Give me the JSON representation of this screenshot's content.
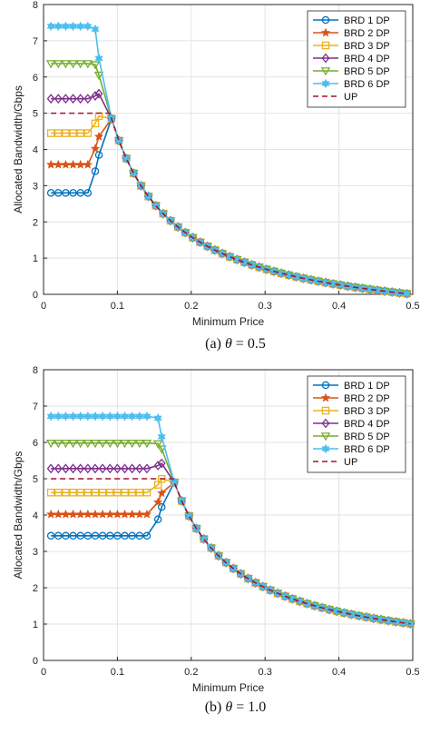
{
  "chart_data": [
    {
      "type": "line",
      "caption_prefix": "(a)",
      "caption_theta": "θ",
      "caption_value": " = 0.5",
      "xlabel": "Minimum Price",
      "ylabel": "Allocated Bandwidth/Gbps",
      "xlim": [
        0,
        0.5
      ],
      "ylim": [
        0,
        8
      ],
      "xticks": [
        "0",
        "0.1",
        "0.2",
        "0.3",
        "0.4",
        "0.5"
      ],
      "yticks": [
        "0",
        "1",
        "2",
        "3",
        "4",
        "5",
        "6",
        "7",
        "8"
      ],
      "grid": true,
      "legend_position": "top-right",
      "knee": 0.08,
      "tail_k": 0.4,
      "series": [
        {
          "name": "BRD 1 DP",
          "flat": 2.8,
          "color": "#0072BD",
          "marker": "circle"
        },
        {
          "name": "BRD 2 DP",
          "flat": 3.58,
          "color": "#D95319",
          "marker": "star"
        },
        {
          "name": "BRD 3 DP",
          "flat": 4.45,
          "color": "#EDB120",
          "marker": "square"
        },
        {
          "name": "BRD 4 DP",
          "flat": 5.4,
          "color": "#7E2F8E",
          "marker": "diamond"
        },
        {
          "name": "BRD 5 DP",
          "flat": 6.37,
          "color": "#77AC30",
          "marker": "triangle-down"
        },
        {
          "name": "BRD 6 DP",
          "flat": 7.4,
          "color": "#4DBEEE",
          "marker": "hexagram"
        },
        {
          "name": "UP",
          "flat": 5.0,
          "color": "#A2142F",
          "marker": "none",
          "dashed": true
        }
      ]
    },
    {
      "type": "line",
      "caption_prefix": "(b)",
      "caption_theta": "θ",
      "caption_value": " = 1.0",
      "xlabel": "Minimum Price",
      "ylabel": "Allocated Bandwidth/Gbps",
      "xlim": [
        0,
        0.5
      ],
      "ylim": [
        0,
        8
      ],
      "xticks": [
        "0",
        "0.1",
        "0.2",
        "0.3",
        "0.4",
        "0.5"
      ],
      "yticks": [
        "0",
        "1",
        "2",
        "3",
        "4",
        "5",
        "6",
        "7",
        "8"
      ],
      "grid": true,
      "legend_position": "top-right",
      "knee": 0.165,
      "tail_k": 0.5,
      "series": [
        {
          "name": "BRD 1 DP",
          "flat": 3.43,
          "color": "#0072BD",
          "marker": "circle"
        },
        {
          "name": "BRD 2 DP",
          "flat": 4.02,
          "color": "#D95319",
          "marker": "star"
        },
        {
          "name": "BRD 3 DP",
          "flat": 4.62,
          "color": "#EDB120",
          "marker": "square"
        },
        {
          "name": "BRD 4 DP",
          "flat": 5.28,
          "color": "#7E2F8E",
          "marker": "diamond"
        },
        {
          "name": "BRD 5 DP",
          "flat": 5.98,
          "color": "#77AC30",
          "marker": "triangle-down"
        },
        {
          "name": "BRD 6 DP",
          "flat": 6.72,
          "color": "#4DBEEE",
          "marker": "hexagram"
        },
        {
          "name": "UP",
          "flat": 5.0,
          "color": "#A2142F",
          "marker": "none",
          "dashed": true
        }
      ]
    }
  ]
}
